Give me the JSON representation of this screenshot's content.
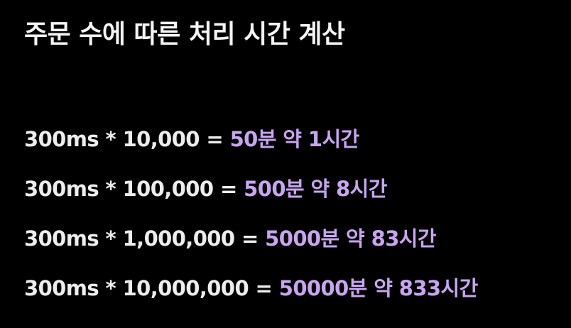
{
  "slide": {
    "title": "주문 수에 따른 처리 시간 계산",
    "lines": [
      {
        "expression": "300ms * 10,000 = ",
        "result": "50분 약 1시간"
      },
      {
        "expression": "300ms * 100,000 = ",
        "result": "500분 약 8시간"
      },
      {
        "expression": "300ms * 1,000,000 = ",
        "result": "5000분 약 83시간"
      },
      {
        "expression": "300ms * 10,000,000 = ",
        "result": "50000분 약 833시간"
      }
    ],
    "colors": {
      "background": "#000000",
      "text": "#ededed",
      "accent": "#c8a6ef"
    }
  }
}
